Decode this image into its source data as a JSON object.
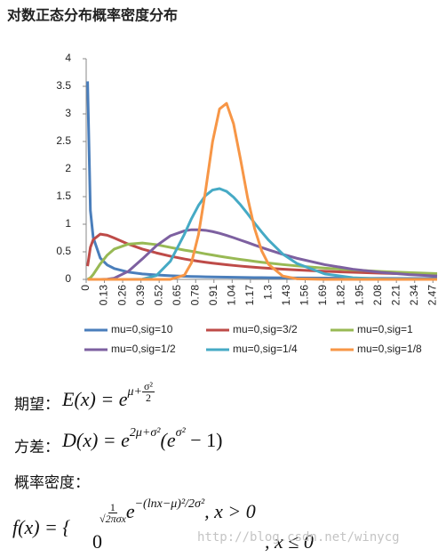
{
  "chart_data": {
    "type": "line",
    "title": "对数正态分布概率密度分布",
    "x": [
      0.01,
      0.03,
      0.05,
      0.1,
      0.15,
      0.2,
      0.3,
      0.4,
      0.5,
      0.6,
      0.7,
      0.75,
      0.8,
      0.85,
      0.9,
      0.95,
      1.0,
      1.05,
      1.1,
      1.15,
      1.2,
      1.25,
      1.3,
      1.4,
      1.5,
      1.7,
      1.9,
      2.1,
      2.3,
      2.5
    ],
    "xlim": [
      0,
      2.5
    ],
    "xticks": [
      0,
      0.13,
      0.26,
      0.39,
      0.52,
      0.65,
      0.78,
      0.91,
      1.04,
      1.17,
      1.3,
      1.43,
      1.56,
      1.69,
      1.82,
      1.95,
      2.08,
      2.21,
      2.34,
      2.47
    ],
    "ylim": [
      0,
      4
    ],
    "yticks": [
      0,
      0.5,
      1,
      1.5,
      2,
      2.5,
      3,
      3.5,
      4
    ],
    "grid": false,
    "legend": "bottom",
    "series": [
      {
        "name": "mu=0,sig=10",
        "color": "#4a7ebb",
        "values": [
          3.59,
          1.25,
          0.76,
          0.389,
          0.261,
          0.197,
          0.132,
          0.099,
          0.08,
          0.067,
          0.057,
          0.053,
          0.05,
          0.047,
          0.044,
          0.042,
          0.04,
          0.038,
          0.036,
          0.035,
          0.033,
          0.032,
          0.031,
          0.029,
          0.027,
          0.024,
          0.021,
          0.019,
          0.017,
          0.016
        ]
      },
      {
        "name": "mu=0,sig=3/2",
        "color": "#be4b48",
        "values": [
          0.24,
          0.58,
          0.72,
          0.82,
          0.8,
          0.75,
          0.64,
          0.55,
          0.48,
          0.42,
          0.37,
          0.348,
          0.329,
          0.311,
          0.295,
          0.28,
          0.266,
          0.253,
          0.241,
          0.23,
          0.22,
          0.21,
          0.202,
          0.185,
          0.171,
          0.147,
          0.128,
          0.112,
          0.099,
          0.088
        ]
      },
      {
        "name": "mu=0,sig=1",
        "color": "#98b954",
        "values": [
          0.001,
          0.028,
          0.089,
          0.28,
          0.44,
          0.55,
          0.64,
          0.66,
          0.63,
          0.58,
          0.53,
          0.51,
          0.487,
          0.463,
          0.441,
          0.42,
          0.399,
          0.38,
          0.361,
          0.344,
          0.327,
          0.311,
          0.297,
          0.269,
          0.245,
          0.204,
          0.171,
          0.144,
          0.123,
          0.105
        ]
      },
      {
        "name": "mu=0,sig=1/2",
        "color": "#7d60a0",
        "values": [
          0,
          0,
          0,
          0,
          0.004,
          0.022,
          0.146,
          0.37,
          0.61,
          0.79,
          0.88,
          0.9,
          0.9,
          0.89,
          0.867,
          0.836,
          0.798,
          0.756,
          0.712,
          0.668,
          0.622,
          0.578,
          0.535,
          0.455,
          0.383,
          0.267,
          0.184,
          0.127,
          0.087,
          0.06
        ]
      },
      {
        "name": "mu=0,sig=1/4",
        "color": "#46aac5",
        "values": [
          0,
          0,
          0,
          0,
          0,
          0,
          0,
          0.005,
          0.069,
          0.33,
          0.82,
          1.1,
          1.34,
          1.52,
          1.62,
          1.645,
          1.596,
          1.49,
          1.35,
          1.19,
          1.02,
          0.86,
          0.71,
          0.46,
          0.29,
          0.099,
          0.031,
          0.009,
          0.003,
          0.001
        ]
      },
      {
        "name": "mu=0,sig=1/8",
        "color": "#f79646",
        "values": [
          0,
          0,
          0,
          0,
          0,
          0,
          0,
          0,
          0,
          0.001,
          0.077,
          0.3,
          0.81,
          1.6,
          2.49,
          3.09,
          3.19,
          2.82,
          2.17,
          1.48,
          0.92,
          0.52,
          0.27,
          0.062,
          0.011,
          0,
          0,
          0,
          0,
          0
        ]
      }
    ]
  },
  "formulas": {
    "expectation": {
      "label": "期望：",
      "lhs": "E(x) = e",
      "sup": "μ+",
      "num": "σ²",
      "den": "2"
    },
    "variance": {
      "label": "方差：",
      "lhs": "D(x) = e",
      "sup": "2μ+σ²",
      "mid": "(e",
      "sup2": "σ²",
      "tail": " − 1)"
    },
    "density": {
      "label": "概率密度："
    },
    "pdf": {
      "lhs": "f(x) = {",
      "num": "1",
      "den": "√2πσx",
      "e": "e",
      "sup": "−(lnx−μ)²/2σ²",
      "cond1": ", x > 0",
      "zero": "0",
      "cond2": ", x ≤ 0"
    }
  },
  "watermark": "http://blog.csdn.net/winycg"
}
